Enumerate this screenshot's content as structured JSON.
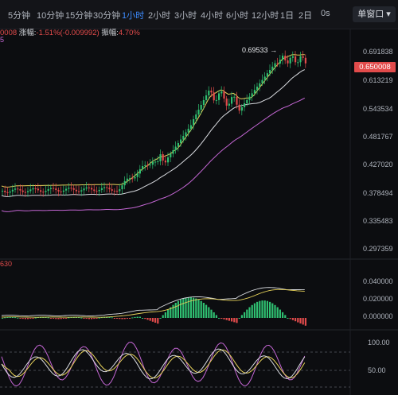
{
  "toolbar": {
    "timeframes": [
      {
        "label": "5分钟",
        "active": false
      },
      {
        "label": "10分钟",
        "active": false
      },
      {
        "label": "15分钟",
        "active": false
      },
      {
        "label": "30分钟",
        "active": false
      },
      {
        "label": "1小时",
        "active": true
      },
      {
        "label": "2小时",
        "active": false
      },
      {
        "label": "3小时",
        "active": false
      },
      {
        "label": "4小时",
        "active": false
      },
      {
        "label": "6小时",
        "active": false
      },
      {
        "label": "12小时",
        "active": false
      },
      {
        "label": "1日",
        "active": false
      },
      {
        "label": "2日",
        "active": false
      },
      {
        "label": "0s",
        "active": false
      }
    ],
    "window_select": "单窗口"
  },
  "info": {
    "prefix": "0008",
    "change_label": "涨幅:",
    "change_value": "-1.51%(-0.009992)",
    "amplitude_label": "振幅:",
    "amplitude_value": "4.70%",
    "sub_indicator": "5"
  },
  "price_axis": {
    "ticks": [
      "0.691838",
      "0.613219",
      "0.543534",
      "0.481767",
      "0.427020",
      "0.378494",
      "0.335483",
      "0.297359"
    ],
    "current_price": "0.650008"
  },
  "high_marker": "0.69533",
  "macd": {
    "label": "630",
    "ticks": [
      "0.040000",
      "0.020000",
      "0.000000"
    ]
  },
  "kdj": {
    "ticks": [
      "100.00",
      "50.00"
    ]
  },
  "colors": {
    "up": "#2fbf71",
    "down": "#e14b4b",
    "ma_yellow": "#e8d35a",
    "ma_white": "#d9dbe0",
    "ma_purple": "#c466d4",
    "accent": "#3d8cff"
  }
}
